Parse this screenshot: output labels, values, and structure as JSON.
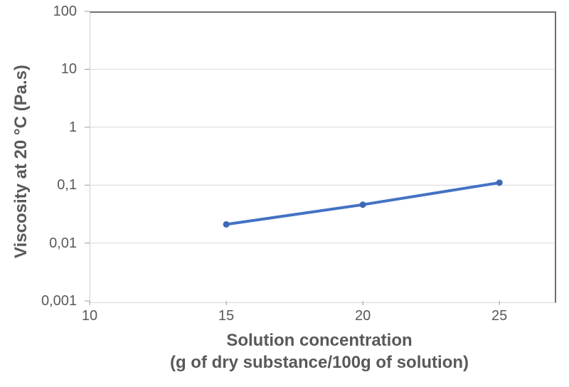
{
  "chart_data": {
    "type": "line",
    "title": "",
    "ylabel": "Viscosity at 20 °C (Pa.s)",
    "xlabel_line1": "Solution concentration",
    "xlabel_line2": "(g of dry substance/100g of solution)",
    "x": [
      15,
      20,
      25
    ],
    "series": [
      {
        "name": "viscosity",
        "values": [
          0.021,
          0.046,
          0.11
        ]
      }
    ],
    "x_axis": {
      "min": 10,
      "max": 27,
      "ticks": [
        10,
        15,
        20,
        25
      ],
      "tick_labels": [
        "10",
        "15",
        "20",
        "25"
      ]
    },
    "y_axis": {
      "scale": "log",
      "min": 0.001,
      "max": 100,
      "ticks": [
        100,
        10,
        1,
        0.1,
        0.01,
        0.001
      ],
      "tick_labels": [
        "100",
        "10",
        "1",
        "0,1",
        "0,01",
        "0,001"
      ]
    },
    "grid": "horizontal-only",
    "legend": "none",
    "marker_shape": "circle",
    "colors": {
      "line": "#4472C4",
      "marker": "#3E68B5",
      "gridline": "#D9D9D9",
      "axis_line": "#CFCFCF",
      "plot_border": "#6F6F6F",
      "tick": "#9B9B9B",
      "text": "#595959"
    }
  }
}
